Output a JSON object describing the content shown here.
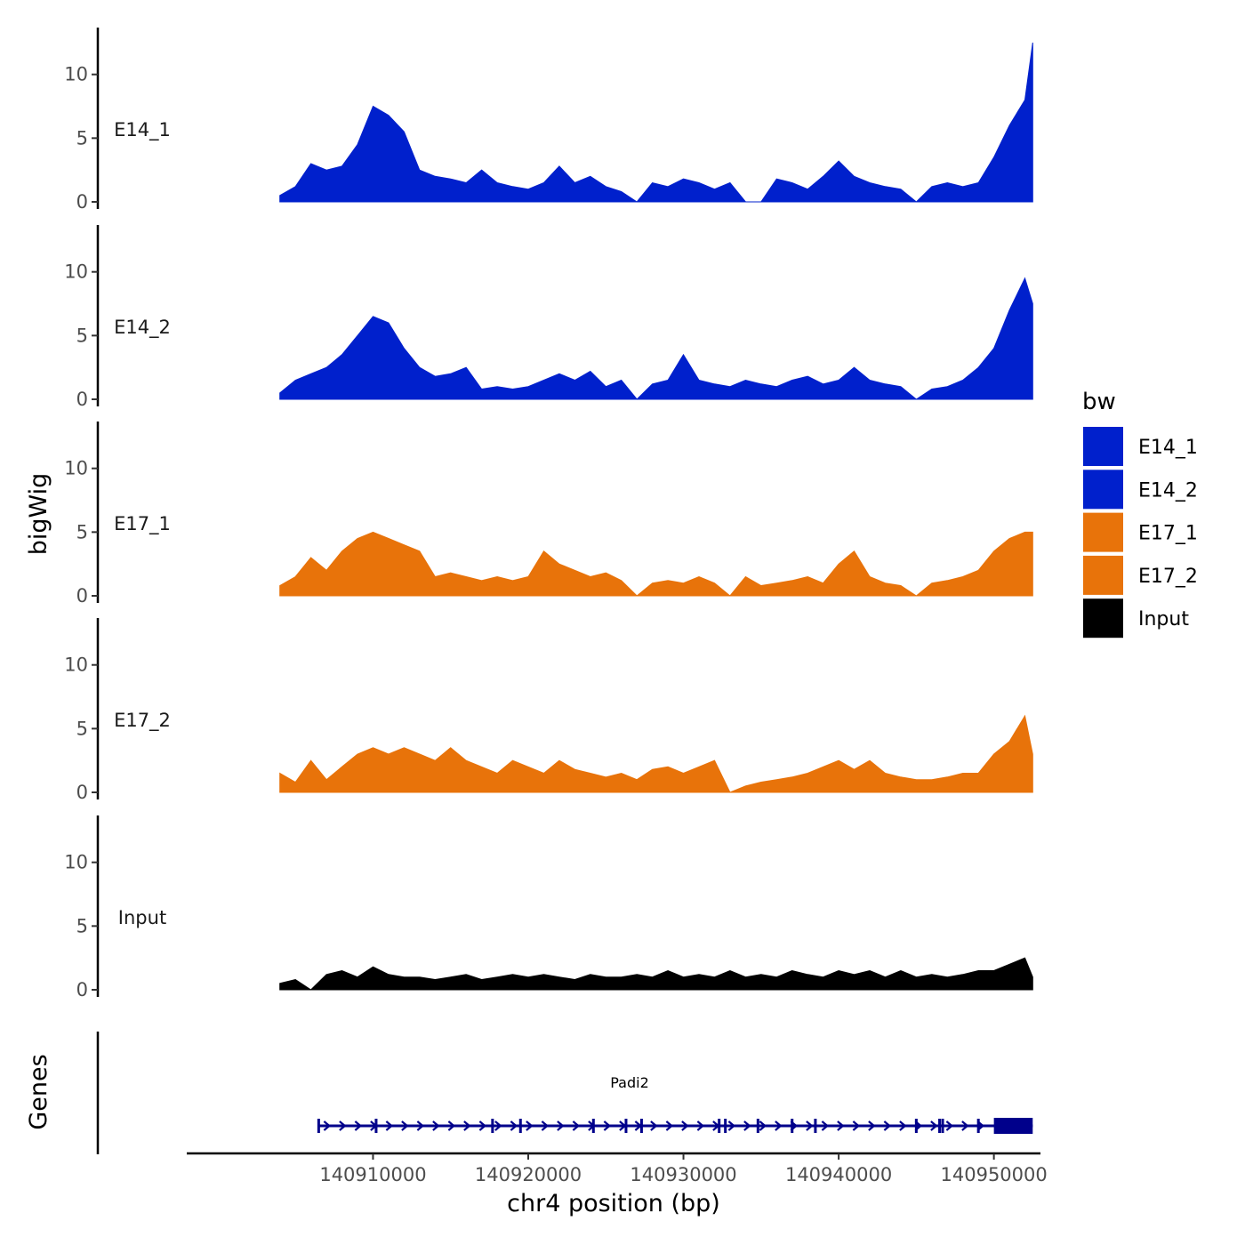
{
  "chart_data": {
    "type": "area",
    "xlabel": "chr4 position (bp)",
    "ylabel": "bigWig",
    "gene_track_label": "Genes",
    "xlim": [
      140898000,
      140953000
    ],
    "ylim": [
      0,
      13
    ],
    "x_ticks": [
      140910000,
      140920000,
      140930000,
      140940000,
      140950000
    ],
    "x_tick_labels": [
      "140910000",
      "140920000",
      "140930000",
      "140940000",
      "140950000"
    ],
    "y_ticks": [
      0,
      5,
      10
    ],
    "y_tick_labels": [
      "0",
      "5",
      "10"
    ],
    "legend": {
      "title": "bw",
      "position": "right",
      "entries": [
        {
          "name": "E14_1",
          "color": "#0020CC"
        },
        {
          "name": "E14_2",
          "color": "#0020CC"
        },
        {
          "name": "E17_1",
          "color": "#E8730A"
        },
        {
          "name": "E17_2",
          "color": "#E8730A"
        },
        {
          "name": "Input",
          "color": "#000000"
        }
      ]
    },
    "series": [
      {
        "name": "E14_1",
        "color": "#0020CC",
        "x": [
          140904000,
          140905000,
          140906000,
          140907000,
          140908000,
          140909000,
          140910000,
          140911000,
          140912000,
          140913000,
          140914000,
          140915000,
          140916000,
          140917000,
          140918000,
          140919000,
          140920000,
          140921000,
          140922000,
          140923000,
          140924000,
          140925000,
          140926000,
          140927000,
          140928000,
          140929000,
          140930000,
          140931000,
          140932000,
          140933000,
          140934000,
          140935000,
          140936000,
          140937000,
          140938000,
          140939000,
          140940000,
          140941000,
          140942000,
          140943000,
          140944000,
          140945000,
          140946000,
          140947000,
          140948000,
          140949000,
          140950000,
          140951000,
          140952000,
          140952500
        ],
        "values": [
          0.5,
          1.2,
          3.0,
          2.5,
          2.8,
          4.5,
          7.5,
          6.8,
          5.5,
          2.5,
          2.0,
          1.8,
          1.5,
          2.5,
          1.5,
          1.2,
          1.0,
          1.5,
          2.8,
          1.5,
          2.0,
          1.2,
          0.8,
          0,
          1.5,
          1.2,
          1.8,
          1.5,
          1.0,
          1.5,
          0,
          0,
          1.8,
          1.5,
          1.0,
          2.0,
          3.2,
          2.0,
          1.5,
          1.2,
          1.0,
          0,
          1.2,
          1.5,
          1.2,
          1.5,
          3.5,
          6.0,
          8.0,
          12.5
        ]
      },
      {
        "name": "E14_2",
        "color": "#0020CC",
        "x": [
          140904000,
          140905000,
          140906000,
          140907000,
          140908000,
          140909000,
          140910000,
          140911000,
          140912000,
          140913000,
          140914000,
          140915000,
          140916000,
          140917000,
          140918000,
          140919000,
          140920000,
          140921000,
          140922000,
          140923000,
          140924000,
          140925000,
          140926000,
          140927000,
          140928000,
          140929000,
          140930000,
          140931000,
          140932000,
          140933000,
          140934000,
          140935000,
          140936000,
          140937000,
          140938000,
          140939000,
          140940000,
          140941000,
          140942000,
          140943000,
          140944000,
          140945000,
          140946000,
          140947000,
          140948000,
          140949000,
          140950000,
          140951000,
          140952000,
          140952500
        ],
        "values": [
          0.5,
          1.5,
          2.0,
          2.5,
          3.5,
          5.0,
          6.5,
          6.0,
          4.0,
          2.5,
          1.8,
          2.0,
          2.5,
          0.8,
          1.0,
          0.8,
          1.0,
          1.5,
          2.0,
          1.5,
          2.2,
          1.0,
          1.5,
          0,
          1.2,
          1.5,
          3.5,
          1.5,
          1.2,
          1.0,
          1.5,
          1.2,
          1.0,
          1.5,
          1.8,
          1.2,
          1.5,
          2.5,
          1.5,
          1.2,
          1.0,
          0,
          0.8,
          1.0,
          1.5,
          2.5,
          4.0,
          7.0,
          9.5,
          7.5
        ]
      },
      {
        "name": "E17_1",
        "color": "#E8730A",
        "x": [
          140904000,
          140905000,
          140906000,
          140907000,
          140908000,
          140909000,
          140910000,
          140911000,
          140912000,
          140913000,
          140914000,
          140915000,
          140916000,
          140917000,
          140918000,
          140919000,
          140920000,
          140921000,
          140922000,
          140923000,
          140924000,
          140925000,
          140926000,
          140927000,
          140928000,
          140929000,
          140930000,
          140931000,
          140932000,
          140933000,
          140934000,
          140935000,
          140936000,
          140937000,
          140938000,
          140939000,
          140940000,
          140941000,
          140942000,
          140943000,
          140944000,
          140945000,
          140946000,
          140947000,
          140948000,
          140949000,
          140950000,
          140951000,
          140952000,
          140952500
        ],
        "values": [
          0.8,
          1.5,
          3.0,
          2.0,
          3.5,
          4.5,
          5.0,
          4.5,
          4.0,
          3.5,
          1.5,
          1.8,
          1.5,
          1.2,
          1.5,
          1.2,
          1.5,
          3.5,
          2.5,
          2.0,
          1.5,
          1.8,
          1.2,
          0,
          1.0,
          1.2,
          1.0,
          1.5,
          1.0,
          0,
          1.5,
          0.8,
          1.0,
          1.2,
          1.5,
          1.0,
          2.5,
          3.5,
          1.5,
          1.0,
          0.8,
          0,
          1.0,
          1.2,
          1.5,
          2.0,
          3.5,
          4.5,
          5.0,
          5.0
        ]
      },
      {
        "name": "E17_2",
        "color": "#E8730A",
        "x": [
          140904000,
          140905000,
          140906000,
          140907000,
          140908000,
          140909000,
          140910000,
          140911000,
          140912000,
          140913000,
          140914000,
          140915000,
          140916000,
          140917000,
          140918000,
          140919000,
          140920000,
          140921000,
          140922000,
          140923000,
          140924000,
          140925000,
          140926000,
          140927000,
          140928000,
          140929000,
          140930000,
          140931000,
          140932000,
          140933000,
          140934000,
          140935000,
          140936000,
          140937000,
          140938000,
          140939000,
          140940000,
          140941000,
          140942000,
          140943000,
          140944000,
          140945000,
          140946000,
          140947000,
          140948000,
          140949000,
          140950000,
          140951000,
          140952000,
          140952500
        ],
        "values": [
          1.5,
          0.8,
          2.5,
          1.0,
          2.0,
          3.0,
          3.5,
          3.0,
          3.5,
          3.0,
          2.5,
          3.5,
          2.5,
          2.0,
          1.5,
          2.5,
          2.0,
          1.5,
          2.5,
          1.8,
          1.5,
          1.2,
          1.5,
          1.0,
          1.8,
          2.0,
          1.5,
          2.0,
          2.5,
          0,
          0.5,
          0.8,
          1.0,
          1.2,
          1.5,
          2.0,
          2.5,
          1.8,
          2.5,
          1.5,
          1.2,
          1.0,
          1.0,
          1.2,
          1.5,
          1.5,
          3.0,
          4.0,
          6.0,
          3.0
        ]
      },
      {
        "name": "Input",
        "color": "#000000",
        "x": [
          140904000,
          140905000,
          140906000,
          140907000,
          140908000,
          140909000,
          140910000,
          140911000,
          140912000,
          140913000,
          140914000,
          140915000,
          140916000,
          140917000,
          140918000,
          140919000,
          140920000,
          140921000,
          140922000,
          140923000,
          140924000,
          140925000,
          140926000,
          140927000,
          140928000,
          140929000,
          140930000,
          140931000,
          140932000,
          140933000,
          140934000,
          140935000,
          140936000,
          140937000,
          140938000,
          140939000,
          140940000,
          140941000,
          140942000,
          140943000,
          140944000,
          140945000,
          140946000,
          140947000,
          140948000,
          140949000,
          140950000,
          140951000,
          140952000,
          140952500
        ],
        "values": [
          0.5,
          0.8,
          0,
          1.2,
          1.5,
          1.0,
          1.8,
          1.2,
          1.0,
          1.0,
          0.8,
          1.0,
          1.2,
          0.8,
          1.0,
          1.2,
          1.0,
          1.2,
          1.0,
          0.8,
          1.2,
          1.0,
          1.0,
          1.2,
          1.0,
          1.5,
          1.0,
          1.2,
          1.0,
          1.5,
          1.0,
          1.2,
          1.0,
          1.5,
          1.2,
          1.0,
          1.5,
          1.2,
          1.5,
          1.0,
          1.5,
          1.0,
          1.2,
          1.0,
          1.2,
          1.5,
          1.5,
          2.0,
          2.5,
          1.0
        ]
      }
    ],
    "gene": {
      "name": "Padi2",
      "color": "#00008B",
      "start": 140906500,
      "end": 140952500,
      "thick_start": 140950000,
      "thick_end": 140952500,
      "strand": "+",
      "exon_marks": [
        140906500,
        140910200,
        140917700,
        140919500,
        140924200,
        140926300,
        140927300,
        140932300,
        140932700,
        140934800,
        140937000,
        140938500,
        140945000,
        140946500,
        140946700,
        140949000
      ]
    }
  }
}
